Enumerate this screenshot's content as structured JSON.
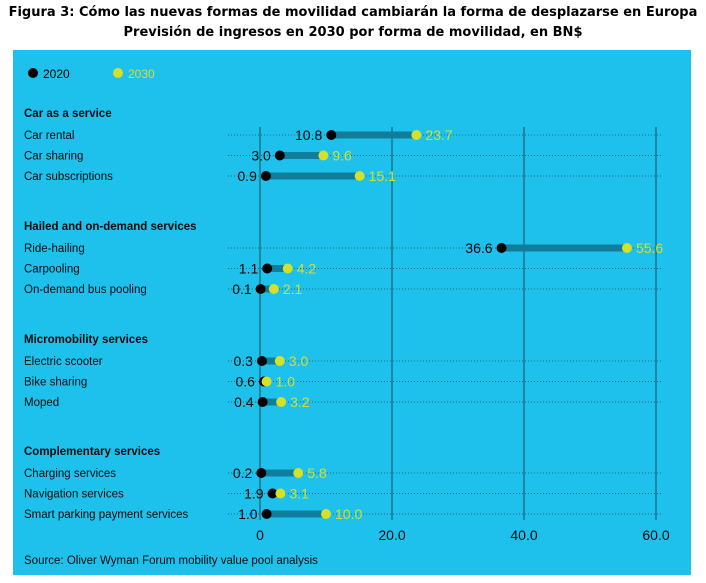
{
  "figure": {
    "title_line1": "Figura 3: Cómo las nuevas formas de movilidad cambiarán la forma de desplazarse en Europa",
    "title_line2": "Previsión de ingresos en 2030 por forma de movilidad, en BN$",
    "source": "Source: Oliver Wyman Forum mobility value pool analysis"
  },
  "colors": {
    "panel": "#1ec1ec",
    "series_2020": "#000000",
    "series_2030": "#d4e02a",
    "connector": "#107d9c",
    "grid": "#1a4a5a"
  },
  "chart_data": {
    "type": "dumbbell",
    "title": "",
    "xlabel": "",
    "ylabel": "",
    "xlim": [
      0,
      60
    ],
    "x_ticks": [
      "0",
      "20.0",
      "40.0",
      "60.0"
    ],
    "grid": true,
    "legend_position": "top-left",
    "series": [
      {
        "name": "2020",
        "color": "#000000"
      },
      {
        "name": "2030",
        "color": "#d4e02a"
      }
    ],
    "groups": [
      {
        "name": "Car as a service",
        "items": [
          {
            "label": "Car rental",
            "v2020": 10.8,
            "v2030": 23.7,
            "label2020": "10.8",
            "label2030": "23.7"
          },
          {
            "label": "Car sharing",
            "v2020": 3.0,
            "v2030": 9.6,
            "label2020": "3.0",
            "label2030": "9.6"
          },
          {
            "label": "Car subscriptions",
            "v2020": 0.9,
            "v2030": 15.1,
            "label2020": "0.9",
            "label2030": "15.1"
          }
        ]
      },
      {
        "name": "Hailed and on-demand services",
        "items": [
          {
            "label": "Ride-hailing",
            "v2020": 36.6,
            "v2030": 55.6,
            "label2020": "36.6",
            "label2030": "55.6"
          },
          {
            "label": "Carpooling",
            "v2020": 1.1,
            "v2030": 4.2,
            "label2020": "1.1",
            "label2030": "4.2"
          },
          {
            "label": "On-demand bus pooling",
            "v2020": 0.1,
            "v2030": 2.1,
            "label2020": "0.1",
            "label2030": "2.1"
          }
        ]
      },
      {
        "name": "Micromobility services",
        "items": [
          {
            "label": "Electric scooter",
            "v2020": 0.3,
            "v2030": 3.0,
            "label2020": "0.3",
            "label2030": "3.0"
          },
          {
            "label": "Bike sharing",
            "v2020": 0.6,
            "v2030": 1.0,
            "label2020": "0.6",
            "label2030": "1.0"
          },
          {
            "label": "Moped",
            "v2020": 0.4,
            "v2030": 3.2,
            "label2020": "0.4",
            "label2030": "3.2"
          }
        ]
      },
      {
        "name": "Complementary services",
        "items": [
          {
            "label": "Charging services",
            "v2020": 0.2,
            "v2030": 5.8,
            "label2020": "0.2",
            "label2030": "5.8"
          },
          {
            "label": "Navigation services",
            "v2020": 1.9,
            "v2030": 3.1,
            "label2020": "1.9",
            "label2030": "3.1"
          },
          {
            "label": "Smart parking payment services",
            "v2020": 1.0,
            "v2030": 10.0,
            "label2020": "1.0",
            "label2030": "10.0"
          }
        ]
      }
    ]
  }
}
